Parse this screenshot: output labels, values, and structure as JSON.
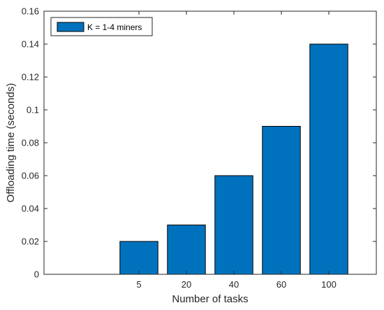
{
  "chart_data": {
    "type": "bar",
    "categories": [
      "5",
      "20",
      "40",
      "60",
      "100"
    ],
    "series": [
      {
        "name": "K = 1-4 miners",
        "values": [
          0.02,
          0.03,
          0.06,
          0.09,
          0.14
        ]
      }
    ],
    "xlabel": "Number of tasks",
    "ylabel": "Offloading time (seconds)",
    "ylim": [
      0,
      0.16
    ],
    "yticks": [
      "0",
      "0.02",
      "0.04",
      "0.06",
      "0.08",
      "0.1",
      "0.12",
      "0.14",
      "0.16"
    ],
    "legend_position": "top-left",
    "grid": false,
    "colors": {
      "bar": "#0072BD",
      "bar_edge": "#000000",
      "axis": "#262626"
    }
  }
}
